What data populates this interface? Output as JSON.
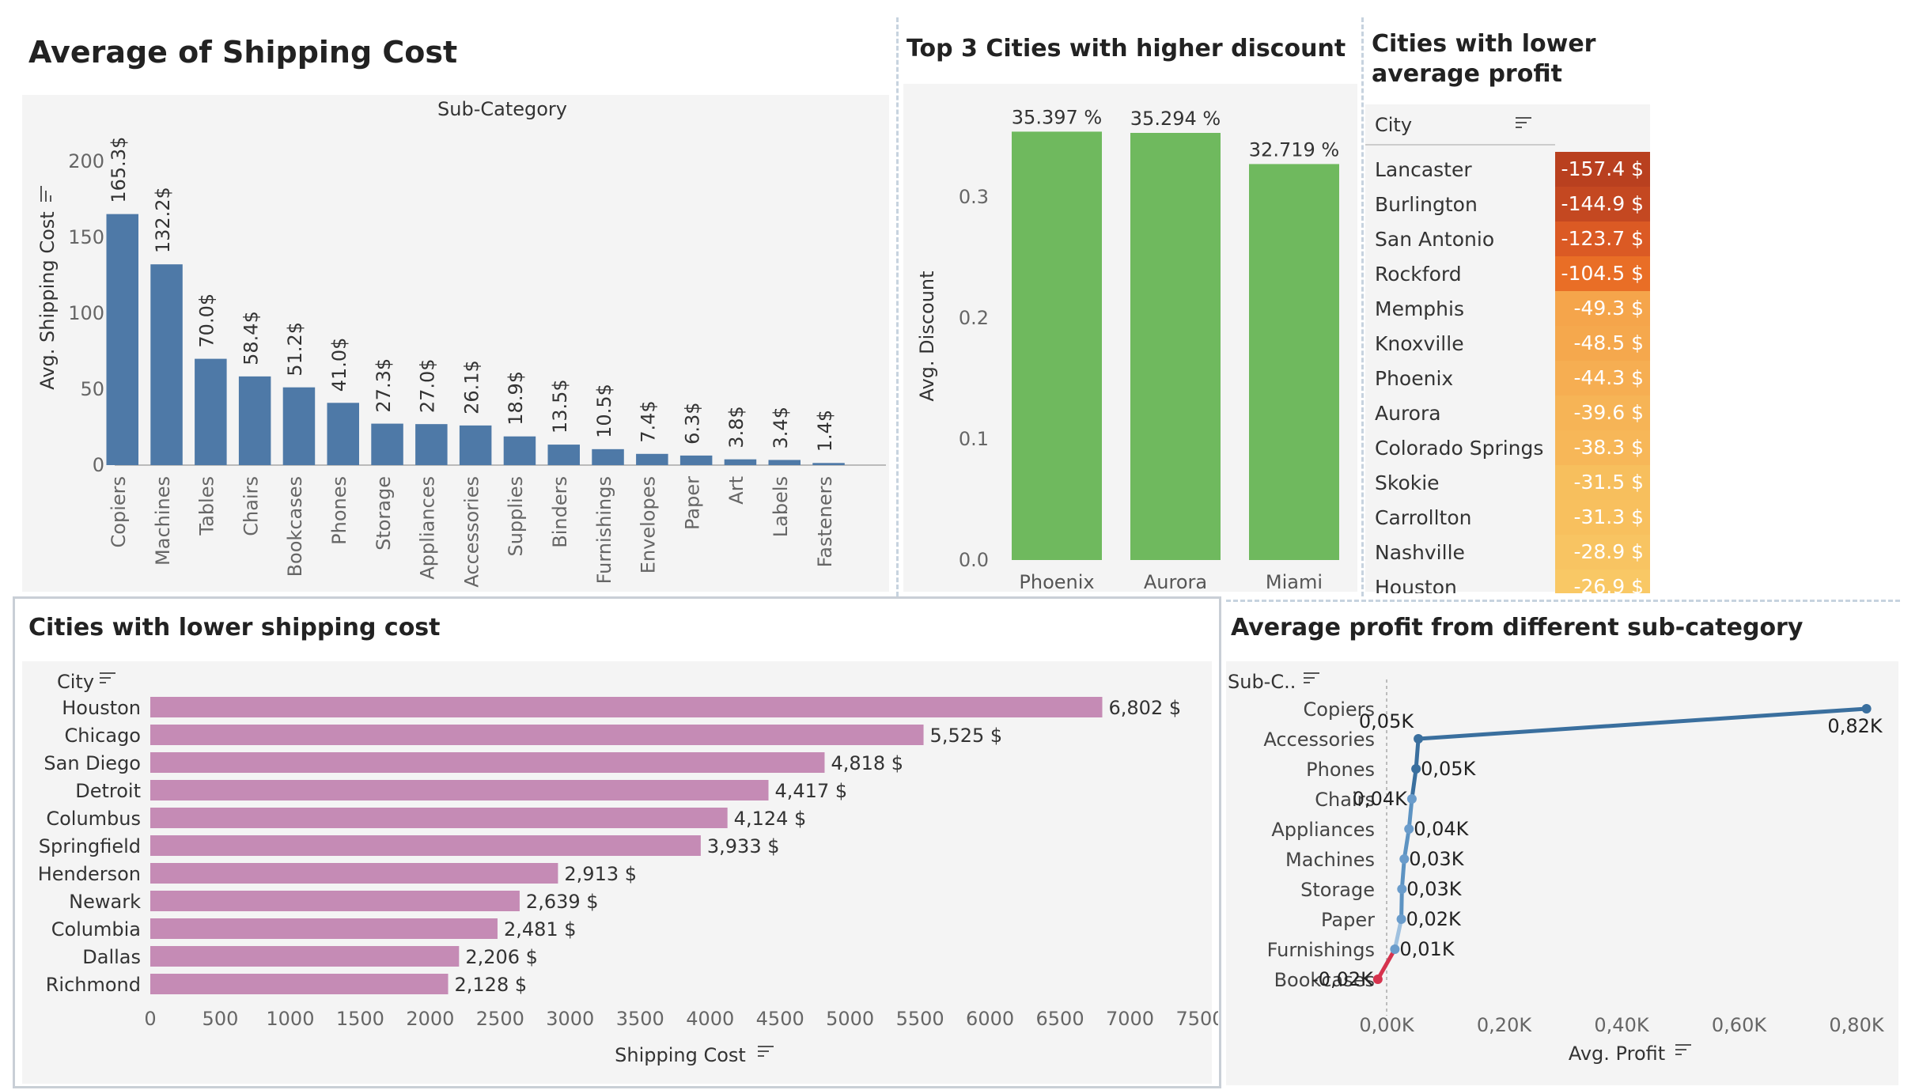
{
  "charts": {
    "shipping": {
      "title": "Average of Shipping Cost",
      "header": "Sub-Category",
      "ylabel": "Avg. Shipping Cost"
    },
    "discount": {
      "title": "Top 3 Cities with higher discount",
      "ylabel": "Avg. Discount"
    },
    "profit_table": {
      "title_line1": "Cities with lower",
      "title_line2": "average profit",
      "column_header": "City"
    },
    "city_shipping": {
      "title": "Cities with lower shipping cost",
      "header": "City",
      "xlabel": "Shipping Cost"
    },
    "subcat_profit": {
      "title": "Average profit from different sub-category",
      "header": "Sub-C..",
      "xlabel": "Avg. Profit"
    }
  },
  "colors": {
    "bar_blue": "#4e79a7",
    "bar_green": "#6fb95e",
    "bar_pink": "#c58bb5",
    "line_blue": "#3a6f9e",
    "line_red": "#d6334e"
  },
  "chart_data": [
    {
      "type": "bar",
      "title": "Average of Shipping Cost",
      "xlabel": "Sub-Category",
      "ylabel": "Avg. Shipping Cost",
      "ylim": [
        0,
        200
      ],
      "yticks": [
        "0",
        "50",
        "100",
        "150",
        "200"
      ],
      "categories": [
        "Copiers",
        "Machines",
        "Tables",
        "Chairs",
        "Bookcases",
        "Phones",
        "Storage",
        "Appliances",
        "Accessories",
        "Supplies",
        "Binders",
        "Furnishings",
        "Envelopes",
        "Paper",
        "Art",
        "Labels",
        "Fasteners"
      ],
      "values": [
        165.3,
        132.2,
        70.0,
        58.4,
        51.2,
        41.0,
        27.3,
        27.0,
        26.1,
        18.9,
        13.5,
        10.5,
        7.4,
        6.3,
        3.8,
        3.4,
        1.4
      ],
      "labels": [
        "165.3$",
        "132.2$",
        "70.0$",
        "58.4$",
        "51.2$",
        "41.0$",
        "27.3$",
        "27.0$",
        "26.1$",
        "18.9$",
        "13.5$",
        "10.5$",
        "7.4$",
        "6.3$",
        "3.8$",
        "3.4$",
        "1.4$"
      ],
      "grid": false
    },
    {
      "type": "bar",
      "title": "Top 3 Cities with higher discount",
      "ylabel": "Avg. Discount",
      "ylim": [
        0,
        0.36
      ],
      "yticks": [
        "0.0",
        "0.1",
        "0.2",
        "0.3"
      ],
      "categories": [
        "Phoenix",
        "Aurora",
        "Miami"
      ],
      "values": [
        0.35397,
        0.35294,
        0.32719
      ],
      "labels": [
        "35.397 %",
        "35.294 %",
        "32.719 %"
      ]
    },
    {
      "type": "table",
      "title": "Cities with lower average profit",
      "column": "City",
      "rows": [
        {
          "city": "Lancaster",
          "value": -157.4,
          "label": "-157.4 $",
          "color": "#b9401f"
        },
        {
          "city": "Burlington",
          "value": -144.9,
          "label": "-144.9 $",
          "color": "#c44821"
        },
        {
          "city": "San Antonio",
          "value": -123.7,
          "label": "-123.7 $",
          "color": "#db5a24"
        },
        {
          "city": "Rockford",
          "value": -104.5,
          "label": "-104.5 $",
          "color": "#e96e26"
        },
        {
          "city": "Memphis",
          "value": -49.3,
          "label": "-49.3 $",
          "color": "#f5a54b"
        },
        {
          "city": "Knoxville",
          "value": -48.5,
          "label": "-48.5 $",
          "color": "#f5a84d"
        },
        {
          "city": "Phoenix",
          "value": -44.3,
          "label": "-44.3 $",
          "color": "#f6ae52"
        },
        {
          "city": "Aurora",
          "value": -39.6,
          "label": "-39.6 $",
          "color": "#f6b456"
        },
        {
          "city": "Colorado Springs",
          "value": -38.3,
          "label": "-38.3 $",
          "color": "#f7b758"
        },
        {
          "city": "Skokie",
          "value": -31.5,
          "label": "-31.5 $",
          "color": "#f7bf5d"
        },
        {
          "city": "Carrollton",
          "value": -31.3,
          "label": "-31.3 $",
          "color": "#f8c05e"
        },
        {
          "city": "Nashville",
          "value": -28.9,
          "label": "-28.9 $",
          "color": "#f8c462"
        },
        {
          "city": "Houston",
          "value": -26.9,
          "label": "-26.9 $",
          "color": "#f9c865"
        }
      ]
    },
    {
      "type": "bar",
      "orientation": "horizontal",
      "title": "Cities with lower shipping cost",
      "xlabel": "Shipping Cost",
      "xlim": [
        0,
        7500
      ],
      "xticks": [
        0,
        500,
        1000,
        1500,
        2000,
        2500,
        3000,
        3500,
        4000,
        4500,
        5000,
        5500,
        6000,
        6500,
        7000,
        7500
      ],
      "categories": [
        "Houston",
        "Chicago",
        "San Diego",
        "Detroit",
        "Columbus",
        "Springfield",
        "Henderson",
        "Newark",
        "Columbia",
        "Dallas",
        "Richmond"
      ],
      "values": [
        6802,
        5525,
        4818,
        4417,
        4124,
        3933,
        2913,
        2639,
        2481,
        2206,
        2128
      ],
      "labels": [
        "6,802 $",
        "5,525 $",
        "4,818 $",
        "4,417 $",
        "4,124 $",
        "3,933 $",
        "2,913 $",
        "2,639 $",
        "2,481 $",
        "2,206 $",
        "2,128 $"
      ]
    },
    {
      "type": "line",
      "title": "Average profit from different sub-category",
      "xlabel": "Avg. Profit",
      "xlim": [
        0,
        850
      ],
      "xticks": [
        "0,00K",
        "0,20K",
        "0,40K",
        "0,60K",
        "0,80K"
      ],
      "categories": [
        "Copiers",
        "Accessories",
        "Phones",
        "Chairs",
        "Appliances",
        "Machines",
        "Storage",
        "Paper",
        "Furnishings",
        "Bookcases"
      ],
      "values": [
        817,
        54,
        50,
        43,
        38,
        30,
        26,
        25,
        14,
        -15
      ],
      "labels": [
        "0,82K",
        "0,05K",
        "0,05K",
        "0,04K",
        "0,04K",
        "0,03K",
        "0,03K",
        "0,02K",
        "0,01K",
        "-0,02K"
      ]
    }
  ]
}
